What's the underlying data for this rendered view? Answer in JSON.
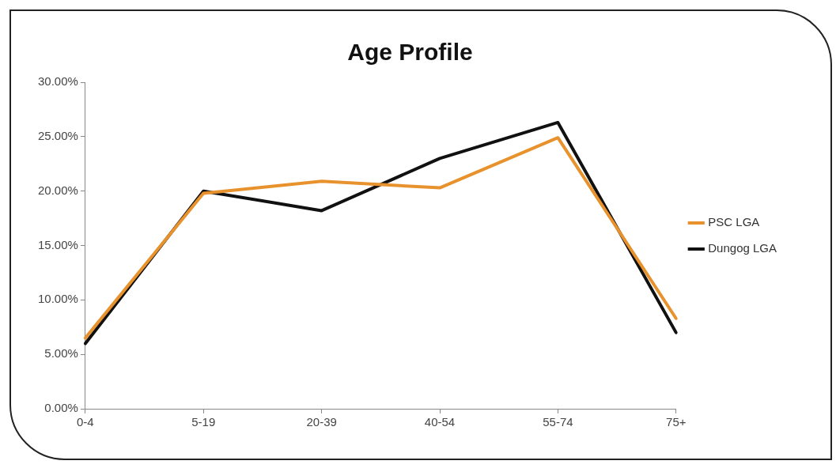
{
  "chart_data": {
    "type": "line",
    "title": "Age Profile",
    "categories": [
      "0-4",
      "5-19",
      "20-39",
      "40-54",
      "55-74",
      "75+"
    ],
    "series": [
      {
        "name": "PSC LGA",
        "color": "#e8922e",
        "values": [
          6.5,
          19.8,
          20.9,
          20.3,
          24.9,
          8.3
        ]
      },
      {
        "name": "Dungog LGA",
        "color": "#111111",
        "values": [
          6.0,
          20.0,
          18.2,
          23.0,
          26.3,
          7.0
        ]
      }
    ],
    "ylim": [
      0,
      30
    ],
    "yticks": [
      {
        "value": 0,
        "label": "0.00%"
      },
      {
        "value": 5,
        "label": "5.00%"
      },
      {
        "value": 10,
        "label": "10.00%"
      },
      {
        "value": 15,
        "label": "15.00%"
      },
      {
        "value": 20,
        "label": "20.00%"
      },
      {
        "value": 25,
        "label": "25.00%"
      },
      {
        "value": 30,
        "label": "30.00%"
      }
    ],
    "grid": false,
    "legend": "right",
    "marker": "none",
    "line_style": "solid"
  }
}
